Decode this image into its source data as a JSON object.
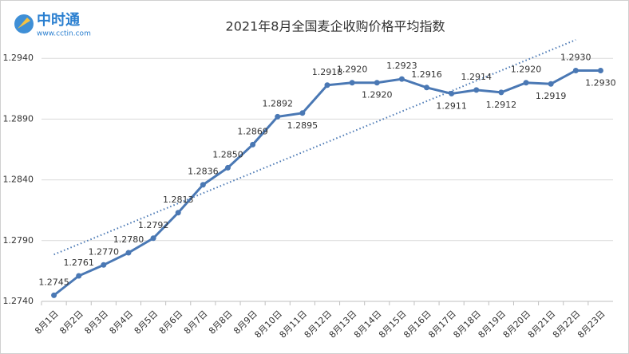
{
  "logo": {
    "name": "中时通",
    "url": "www.cctin.com"
  },
  "chart_data": {
    "type": "line",
    "title": "2021年8月全国麦企收购价格平均指数",
    "categories": [
      "8月1日",
      "8月2日",
      "8月3日",
      "8月4日",
      "8月5日",
      "8月6日",
      "8月7日",
      "8月8日",
      "8月9日",
      "8月10日",
      "8月11日",
      "8月12日",
      "8月13日",
      "8月14日",
      "8月15日",
      "8月16日",
      "8月17日",
      "8月18日",
      "8月19日",
      "8月20日",
      "8月21日",
      "8月22日",
      "8月23日"
    ],
    "series": [
      {
        "color": "#4a78b4",
        "values": [
          1.2745,
          1.2761,
          1.277,
          1.278,
          1.2792,
          1.2813,
          1.2836,
          1.285,
          1.2869,
          1.2892,
          1.2895,
          1.2918,
          1.292,
          1.292,
          1.2923,
          1.2916,
          1.2911,
          1.2914,
          1.2912,
          1.292,
          1.2919,
          1.293,
          1.293
        ],
        "value_labels": [
          "1.2745",
          "1.2761",
          "1.2770",
          "1.2780",
          "1.2792",
          "1.2813",
          "1.2836",
          "1.2850",
          "1.2869",
          "1.2892",
          "1.2895",
          "1.2918",
          "1.2920",
          "1.2920",
          "1.2923",
          "1.2916",
          "1.2911",
          "1.2914",
          "1.2912",
          "1.2920",
          "1.2919",
          "1.2930",
          "1.2930"
        ]
      }
    ],
    "ylim": [
      1.274,
      1.295
    ],
    "yticks": [
      {
        "value": 1.274,
        "label": "1.2740"
      },
      {
        "value": 1.279,
        "label": "1.2790"
      },
      {
        "value": 1.284,
        "label": "1.2840"
      },
      {
        "value": 1.289,
        "label": "1.2890"
      },
      {
        "value": 1.294,
        "label": "1.2940"
      }
    ],
    "grid": true,
    "trendline": true
  }
}
